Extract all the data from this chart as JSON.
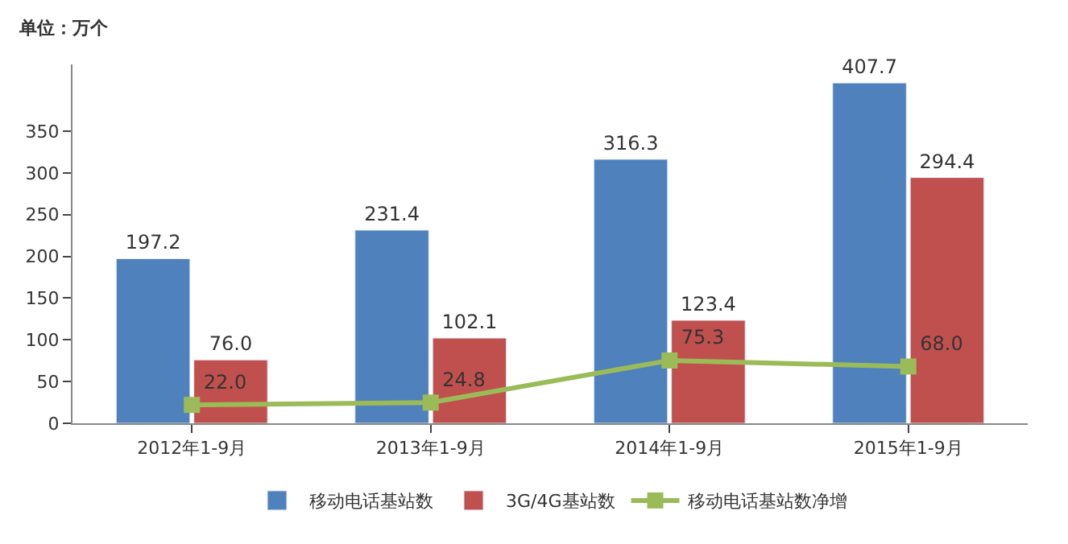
{
  "chart_data": {
    "type": "bar",
    "annotations": [
      "单位：万个"
    ],
    "categories": [
      "2012年1-9月",
      "2013年1-9月",
      "2014年1-9月",
      "2015年1-9月"
    ],
    "series": [
      {
        "name": "移动电话基站数",
        "color": "#4f81bd",
        "values": [
          197.2,
          231.4,
          316.3,
          407.7
        ],
        "value_labels": [
          "197.2",
          "231.4",
          "316.3",
          "407.7"
        ]
      },
      {
        "name": "3G/4G基站数",
        "color": "#c0504d",
        "values": [
          76.0,
          102.1,
          123.4,
          294.4
        ],
        "value_labels": [
          "76.0",
          "102.1",
          "123.4",
          "294.4"
        ]
      },
      {
        "name": "移动电话基站数净增",
        "type": "line",
        "color": "#9bbb59",
        "marker": "square",
        "values": [
          22.0,
          24.8,
          75.3,
          68.0
        ],
        "value_labels": [
          "22.0",
          "24.8",
          "75.3",
          "68.0"
        ]
      }
    ],
    "ylim": [
      0,
      430
    ],
    "yticks": [
      0,
      50,
      100,
      150,
      200,
      250,
      300,
      350
    ],
    "legend": "bottom"
  }
}
